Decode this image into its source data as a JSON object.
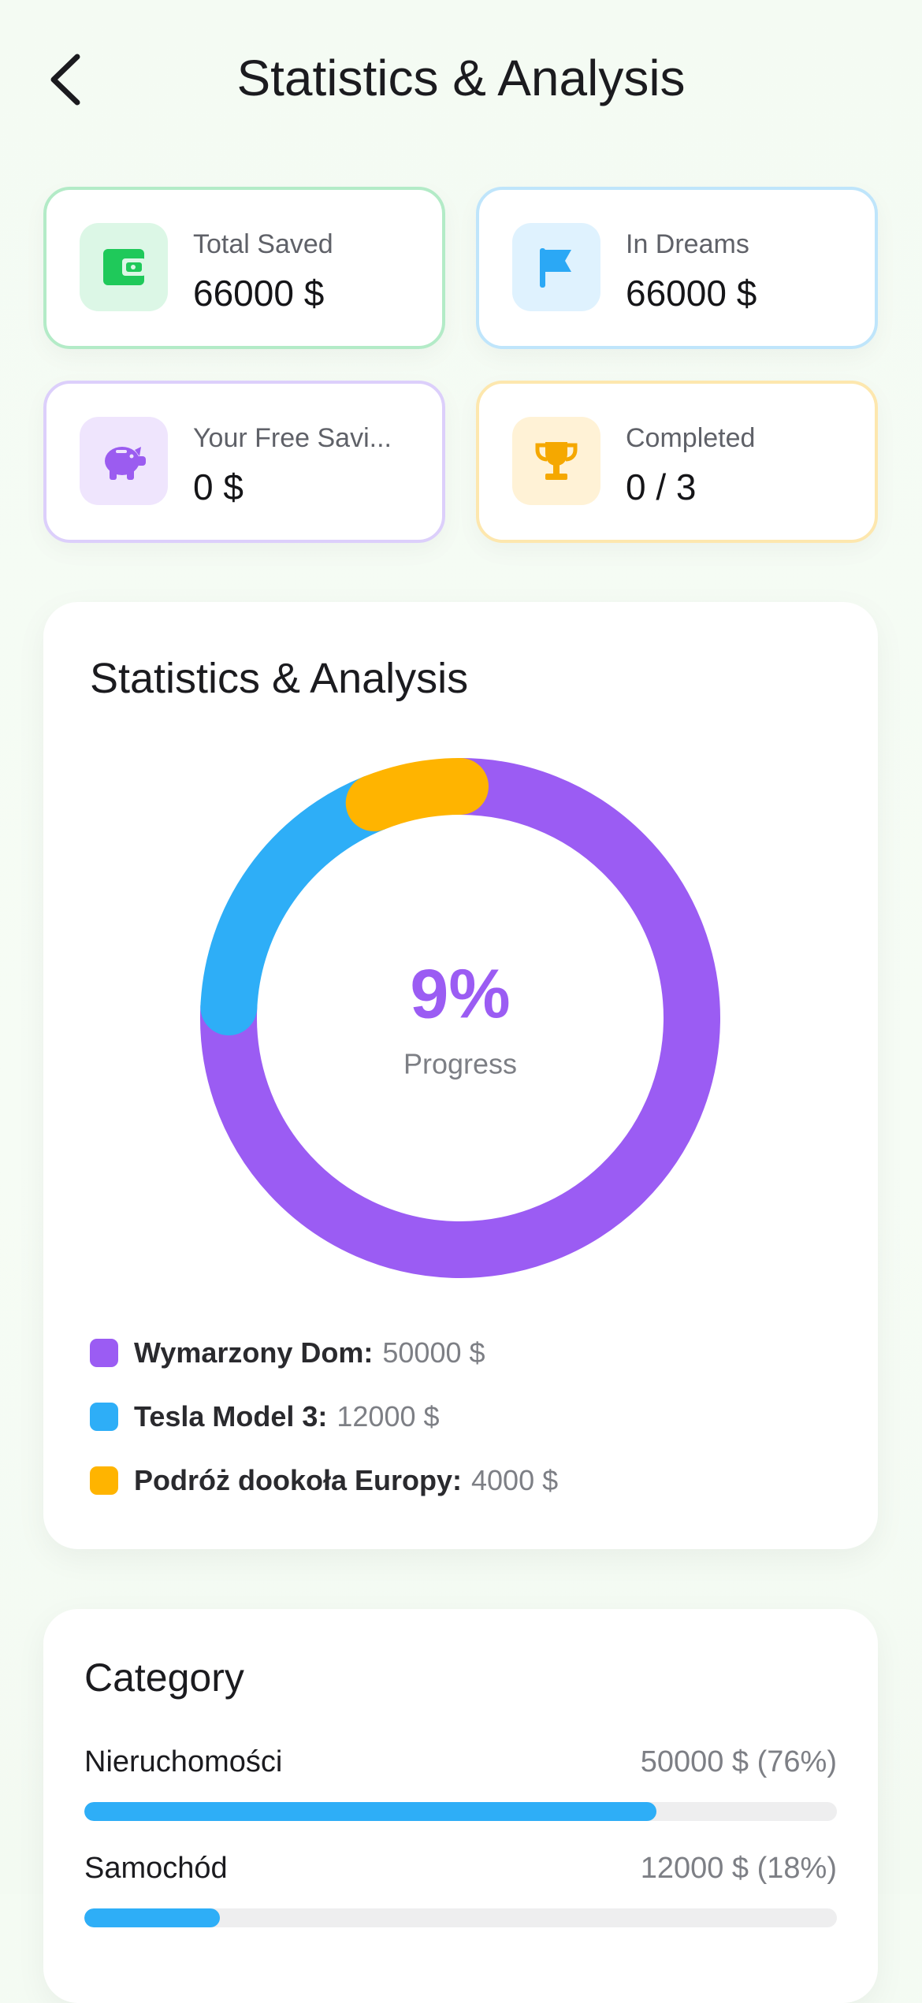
{
  "header": {
    "title": "Statistics & Analysis"
  },
  "stats": [
    {
      "label": "Total Saved",
      "value": "66000 $"
    },
    {
      "label": "In Dreams",
      "value": "66000 $"
    },
    {
      "label": "Your Free Savi...",
      "value": "0 $"
    },
    {
      "label": "Completed",
      "value": "0 / 3"
    }
  ],
  "chart_data": [
    {
      "type": "donut",
      "title": "Statistics & Analysis",
      "center_value": "9%",
      "center_label": "Progress",
      "categories": [
        "Wymarzony Dom:",
        "Tesla Model 3:",
        "Podróż dookoła Europy:"
      ],
      "values": [
        50000,
        12000,
        4000
      ],
      "value_labels": [
        "50000 $",
        "12000 $",
        "4000 $"
      ],
      "colors": [
        "#9b5cf3",
        "#2eaef7",
        "#ffb400"
      ]
    },
    {
      "type": "progress",
      "title": "Category",
      "categories": [
        "Nieruchomości",
        "Samochód"
      ],
      "values": [
        76,
        18
      ],
      "value_labels": [
        "50000 $ (76%)",
        "12000 $ (18%)"
      ],
      "xlim": [
        0,
        100
      ],
      "color": "#2eaef7"
    }
  ]
}
